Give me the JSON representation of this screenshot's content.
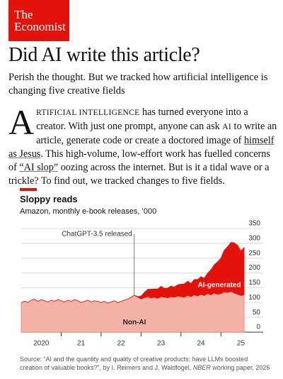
{
  "header": {
    "logo_line1": "The",
    "logo_line2": "Economist",
    "title": "Did AI write this article?",
    "subtitle": "Perish the thought. But we tracked how artificial intelligence is changing five creative fields"
  },
  "body": {
    "segments": [
      {
        "text": "A",
        "style": "drop_cap"
      },
      {
        "text": "RTIFICIAL INTELLIGENCE",
        "style": "small_caps"
      },
      {
        "text": " has turned everyone into a creator. With just one prompt, anyone can ask ",
        "style": "plain"
      },
      {
        "text": "AI",
        "style": "small_caps"
      },
      {
        "text": " to write an article, generate code or create a doctored image of ",
        "style": "plain"
      },
      {
        "text": "himself as Jesus",
        "style": "link"
      },
      {
        "text": ". This high-volume, low-effort work has fuelled concerns of ",
        "style": "plain"
      },
      {
        "text": "“AI slop”",
        "style": "link"
      },
      {
        "text": " oozing across the internet. But is it a tidal wave or a trickle? To find out, we tracked changes to five fields.",
        "style": "plain"
      }
    ]
  },
  "chart_data": {
    "type": "stacked_area",
    "title": "Sloppy reads",
    "subtitle": "Amazon, monthly e-book releases, ’000",
    "x": [
      2020,
      2020.08,
      2020.17,
      2020.25,
      2020.33,
      2020.42,
      2020.5,
      2020.58,
      2020.67,
      2020.75,
      2020.83,
      2020.92,
      2021,
      2021.08,
      2021.17,
      2021.25,
      2021.33,
      2021.42,
      2021.5,
      2021.58,
      2021.67,
      2021.75,
      2021.83,
      2021.92,
      2022,
      2022.08,
      2022.17,
      2022.25,
      2022.33,
      2022.42,
      2022.5,
      2022.58,
      2022.67,
      2022.75,
      2022.83,
      2022.92,
      2023,
      2023.08,
      2023.17,
      2023.25,
      2023.33,
      2023.42,
      2023.5,
      2023.58,
      2023.67,
      2023.75,
      2023.83,
      2023.92,
      2024,
      2024.08,
      2024.17,
      2024.25,
      2024.33,
      2024.42,
      2024.5,
      2024.58,
      2024.67,
      2024.75,
      2024.83,
      2024.92,
      2025,
      2025.08,
      2025.17,
      2025.25,
      2025.33,
      2025.42,
      2025.5,
      2025.58
    ],
    "series": [
      {
        "name": "Non-AI",
        "color": "#f5b2a6",
        "values": [
          98,
          105,
          100,
          108,
          112,
          104,
          110,
          106,
          102,
          108,
          104,
          110,
          106,
          102,
          108,
          104,
          110,
          106,
          100,
          104,
          108,
          102,
          106,
          104,
          100,
          104,
          98,
          102,
          106,
          100,
          104,
          108,
          112,
          118,
          125,
          118,
          112,
          116,
          120,
          115,
          118,
          114,
          120,
          118,
          116,
          120,
          118,
          122,
          120,
          118,
          124,
          120,
          126,
          122,
          128,
          124,
          130,
          126,
          132,
          128,
          130,
          136,
          134,
          138,
          132,
          128,
          124,
          126
        ]
      },
      {
        "name": "AI-generated",
        "color": "#e3120b",
        "values": [
          0,
          0,
          0,
          0,
          0,
          0,
          0,
          0,
          0,
          0,
          0,
          0,
          0,
          0,
          0,
          0,
          0,
          0,
          0,
          0,
          0,
          0,
          0,
          0,
          0,
          0,
          0,
          0,
          0,
          0,
          0,
          0,
          0,
          0,
          0,
          2,
          10,
          18,
          25,
          30,
          28,
          32,
          35,
          30,
          33,
          36,
          34,
          38,
          42,
          45,
          48,
          44,
          52,
          56,
          60,
          58,
          70,
          85,
          95,
          110,
          120,
          140,
          155,
          165,
          170,
          165,
          150,
          160
        ]
      }
    ],
    "xlim": [
      2020,
      2025.58
    ],
    "xticks": [
      {
        "value": 2020.5,
        "label": "2020"
      },
      {
        "value": 2021.5,
        "label": "21"
      },
      {
        "value": 2022.5,
        "label": "22"
      },
      {
        "value": 2023.5,
        "label": "23"
      },
      {
        "value": 2024.5,
        "label": "24"
      },
      {
        "value": 2025.5,
        "label": "25"
      }
    ],
    "ylim": [
      0,
      350
    ],
    "yticks": [
      0,
      50,
      100,
      150,
      200,
      250,
      300,
      350
    ],
    "grid": true,
    "annotation": {
      "text": "ChatGPT-3.5 released",
      "x": 2022.83
    },
    "source": [
      {
        "text": "Source: “AI and the quantity and quality of creative products: have LLMs boosted creation of valuable books?”, by I. Reimers and J. Waldfogel, ",
        "style": "plain"
      },
      {
        "text": "NBER",
        "style": "italic"
      },
      {
        "text": " working paper, 2026",
        "style": "plain"
      }
    ]
  }
}
